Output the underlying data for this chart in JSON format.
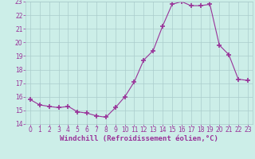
{
  "hours": [
    0,
    1,
    2,
    3,
    4,
    5,
    6,
    7,
    8,
    9,
    10,
    11,
    12,
    13,
    14,
    15,
    16,
    17,
    18,
    19,
    20,
    21,
    22,
    23
  ],
  "values": [
    15.8,
    15.4,
    15.3,
    15.2,
    15.3,
    14.9,
    14.8,
    14.6,
    14.5,
    15.2,
    16.0,
    17.1,
    18.7,
    19.4,
    21.2,
    22.8,
    23.0,
    22.7,
    22.7,
    22.8,
    19.8,
    19.1,
    17.3,
    17.2
  ],
  "line_color": "#993399",
  "marker": "+",
  "marker_size": 4,
  "bg_color": "#cceee8",
  "grid_color": "#aacccc",
  "xlabel": "Windchill (Refroidissement éolien,°C)",
  "xlim": [
    -0.5,
    23.5
  ],
  "ylim": [
    14,
    23
  ],
  "yticks": [
    14,
    15,
    16,
    17,
    18,
    19,
    20,
    21,
    22,
    23
  ],
  "xticks": [
    0,
    1,
    2,
    3,
    4,
    5,
    6,
    7,
    8,
    9,
    10,
    11,
    12,
    13,
    14,
    15,
    16,
    17,
    18,
    19,
    20,
    21,
    22,
    23
  ],
  "tick_color": "#993399",
  "label_color": "#993399",
  "tick_fontsize": 5.5,
  "xlabel_fontsize": 6.5,
  "marker_color": "#993399"
}
